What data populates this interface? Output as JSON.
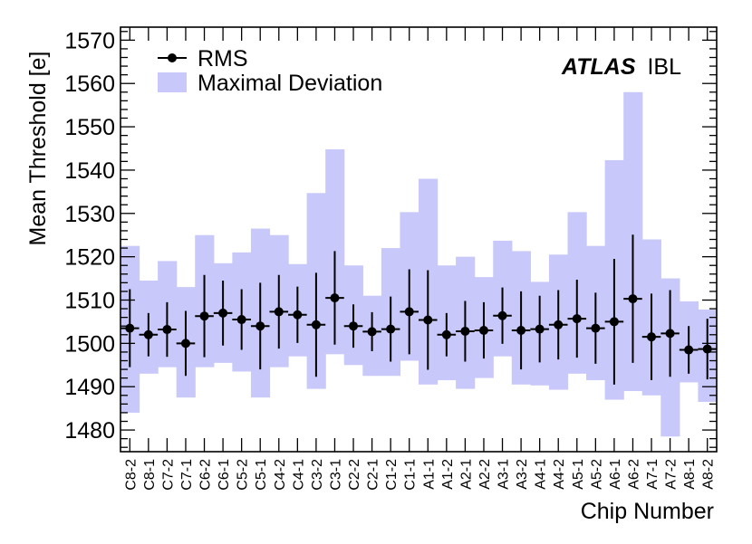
{
  "chart_data": {
    "type": "scatter",
    "title": "",
    "xlabel": "Chip Number",
    "ylabel": "Mean Threshold [e]",
    "ylim": [
      1475,
      1573
    ],
    "yticks": [
      1480,
      1490,
      1500,
      1510,
      1520,
      1530,
      1540,
      1550,
      1560,
      1570
    ],
    "categories": [
      "C8-2",
      "C8-1",
      "C7-2",
      "C7-1",
      "C6-2",
      "C6-1",
      "C5-2",
      "C5-1",
      "C4-2",
      "C4-1",
      "C3-2",
      "C3-1",
      "C2-2",
      "C2-1",
      "C1-2",
      "C1-1",
      "A1-1",
      "A1-2",
      "A2-1",
      "A2-2",
      "A3-1",
      "A3-2",
      "A4-1",
      "A4-2",
      "A5-1",
      "A5-2",
      "A6-1",
      "A6-2",
      "A7-1",
      "A7-2",
      "A8-1",
      "A8-2"
    ],
    "series": [
      {
        "name": "RMS",
        "marker": "circle",
        "color": "#000000",
        "values": [
          1503.5,
          1502,
          1503.2,
          1500,
          1506.3,
          1507,
          1505.5,
          1504,
          1507.3,
          1506.6,
          1504.3,
          1510.5,
          1504,
          1502.7,
          1503.3,
          1507.3,
          1505.4,
          1502,
          1502.8,
          1503,
          1506.4,
          1503,
          1503.3,
          1504.3,
          1505.7,
          1503.5,
          1505,
          1510.3,
          1501.5,
          1502.3,
          1498.5,
          1498.7
        ],
        "errors": [
          9,
          5,
          6.3,
          7.5,
          9.5,
          7.5,
          7,
          10,
          8.5,
          6.5,
          12,
          10.8,
          5,
          4.5,
          7.5,
          9.8,
          11.5,
          5,
          7,
          6.5,
          6.5,
          9,
          7.7,
          8,
          9,
          8.2,
          14.5,
          14.8,
          10,
          10,
          5.5,
          7
        ]
      },
      {
        "name": "Maximal Deviation",
        "color": "#c8c8fa",
        "low": [
          1484,
          1493,
          1494.5,
          1487.5,
          1494.5,
          1495.5,
          1493.5,
          1487.5,
          1494.5,
          1497,
          1489.5,
          1497.5,
          1495,
          1492.5,
          1492.5,
          1496,
          1490.5,
          1491.5,
          1489.5,
          1492,
          1497,
          1490.5,
          1490.3,
          1489.3,
          1493,
          1491.5,
          1487,
          1489,
          1488,
          1478.5,
          1491,
          1486.5
        ],
        "high": [
          1522.5,
          1514.5,
          1519,
          1513,
          1525,
          1518.5,
          1521,
          1526.5,
          1525,
          1518.3,
          1534.7,
          1544.8,
          1518,
          1511,
          1522,
          1530.3,
          1538,
          1518,
          1520,
          1515.3,
          1523.7,
          1521.3,
          1514.2,
          1520.5,
          1530.3,
          1522.5,
          1542.3,
          1558,
          1524,
          1515,
          1509.7,
          1507.8
        ]
      }
    ],
    "legend": {
      "position": "top-left",
      "entries": [
        "RMS",
        "Maximal Deviation"
      ]
    },
    "label_main": "ATLAS",
    "label_sub": "IBL"
  }
}
